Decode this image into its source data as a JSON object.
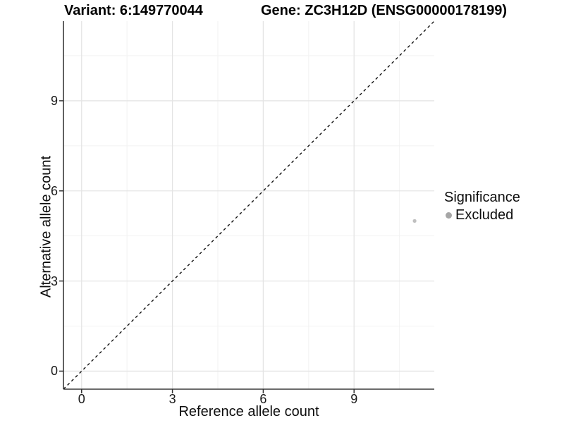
{
  "titles": {
    "variant": "Variant: 6:149770044",
    "gene": "Gene: ZC3H12D (ENSG00000178199)"
  },
  "chart_data": {
    "type": "scatter",
    "xlabel": "Reference allele count",
    "ylabel": "Alternative allele count",
    "xlim": [
      -0.6,
      11.65
    ],
    "ylim": [
      -0.6,
      11.65
    ],
    "x_major_ticks": [
      0,
      3,
      6,
      9
    ],
    "y_major_ticks": [
      0,
      3,
      6,
      9
    ],
    "x_minor_ticks": [
      1.5,
      4.5,
      7.5,
      10.5
    ],
    "y_minor_ticks": [
      1.5,
      4.5,
      7.5,
      10.5
    ],
    "grid": "major+minor",
    "points": [
      {
        "x": 11,
        "y": 5,
        "series": "Excluded"
      }
    ],
    "identity_line": {
      "type": "y=x",
      "style": "dashed",
      "color": "#111111"
    },
    "legend": {
      "title": "Significance",
      "position": "right",
      "items": [
        {
          "label": "Excluded",
          "color": "#a6a6a6"
        }
      ]
    },
    "colors": {
      "point": "#c0c0c0",
      "grid_major": "#e4e4e4",
      "grid_minor": "#f2f2f2",
      "axis_line": "#3a3a3a",
      "tick_mark": "#333333"
    }
  }
}
